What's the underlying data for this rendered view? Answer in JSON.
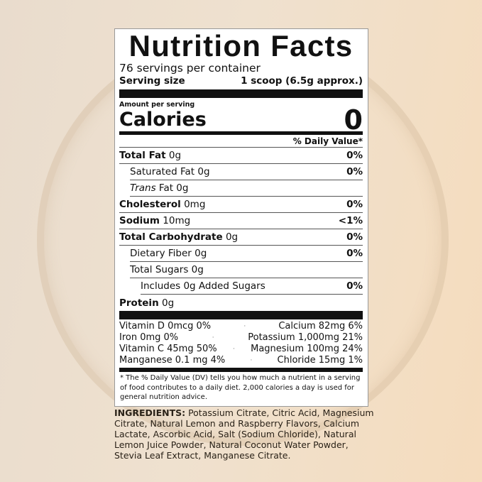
{
  "label": {
    "title": "Nutrition Facts",
    "servings": "76 servings per container",
    "serving_size_label": "Serving size",
    "serving_size_value": "1 scoop (6.5g approx.)",
    "amount_per_serving": "Amount per serving",
    "calories_label": "Calories",
    "calories_value": "0",
    "dv_header": "% Daily Value*",
    "nutrients": [
      {
        "name": "Total Fat",
        "amount": "0g",
        "dv": "0%"
      },
      {
        "name": "Saturated Fat",
        "amount": "0g",
        "dv": "0%"
      },
      {
        "name": "Trans",
        "amount": "Fat 0g",
        "dv": ""
      },
      {
        "name": "Cholesterol",
        "amount": "0mg",
        "dv": "0%"
      },
      {
        "name": "Sodium",
        "amount": "10mg",
        "dv": "<1%"
      },
      {
        "name": "Total Carbohydrate",
        "amount": "0g",
        "dv": "0%"
      },
      {
        "name": "Dietary Fiber",
        "amount": "0g",
        "dv": "0%"
      },
      {
        "name": "Total Sugars",
        "amount": "0g",
        "dv": ""
      },
      {
        "name": "Includes 0g Added Sugars",
        "amount": "",
        "dv": "0%"
      },
      {
        "name": "Protein",
        "amount": "0g",
        "dv": ""
      }
    ],
    "vitamins": [
      [
        "Vitamin D 0mcg 0%",
        "Calcium 82mg 6%"
      ],
      [
        "Iron 0mg 0%",
        "Potassium 1,000mg 21%"
      ],
      [
        "Vitamin C 45mg 50%",
        "Magnesium 100mg 24%"
      ],
      [
        "Manganese 0.1 mg 4%",
        "Chloride 15mg 1%"
      ]
    ],
    "footnote": "* The % Daily Value (DV) tells you how much a nutrient in a serving of food contributes to a daily diet. 2,000 calories a day is used for general nutrition advice."
  },
  "ingredients": {
    "label": "INGREDIENTS:",
    "text": " Potassium Citrate, Citric Acid, Magnesium Citrate, Natural Lemon and Raspberry Flavors, Calcium Lactate, Ascorbic Acid, Salt (Sodium Chloride), Natural Lemon Juice Powder, Natural Coconut Water Powder, Stevia Leaf Extract, Manganese Citrate."
  }
}
